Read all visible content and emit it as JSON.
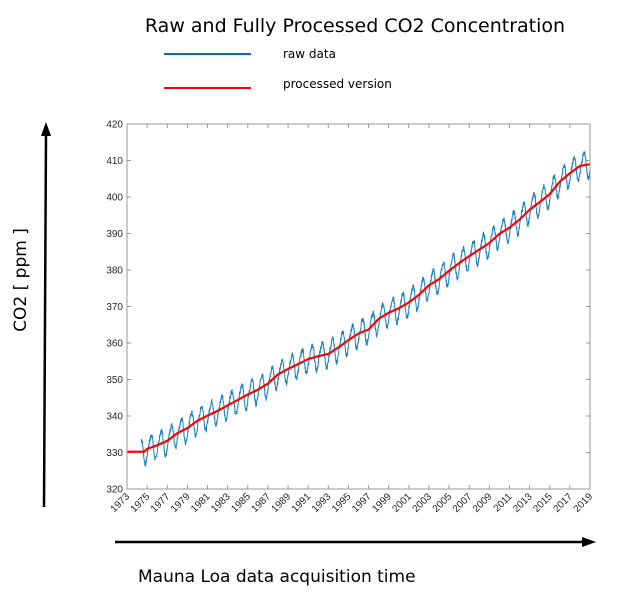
{
  "chart_data": {
    "type": "line",
    "title": "Raw and Fully Processed CO2 Concentration",
    "xlabel": "Mauna Loa data acquisition time",
    "ylabel": "CO2  [ ppm ]",
    "xlim": [
      1973,
      2019
    ],
    "ylim": [
      320,
      420
    ],
    "grid": false,
    "legend_position": "top",
    "x_ticks": [
      "1973",
      "1975",
      "1977",
      "1979",
      "1981",
      "1983",
      "1985",
      "1987",
      "1989",
      "1991",
      "1993",
      "1995",
      "1997",
      "1999",
      "2001",
      "2003",
      "2005",
      "2007",
      "2009",
      "2011",
      "2013",
      "2015",
      "2017",
      "2019"
    ],
    "y_ticks": [
      320,
      330,
      340,
      350,
      360,
      370,
      380,
      390,
      400,
      410,
      420
    ],
    "series": [
      {
        "name": "raw data",
        "color": "#0072BD",
        "description": "monthly/weekly raw CO2 readings with seasonal oscillation (~±3-4 ppm) around trend, starting 1974.4",
        "start_year": 1974.4,
        "end_year": 2019,
        "seasonal_amplitude": 3.4
      },
      {
        "name": "processed version",
        "color": "#FF0000",
        "x": [
          1973,
          1974,
          1974.7,
          1975,
          1976,
          1977,
          1978,
          1979,
          1980,
          1981,
          1982,
          1983,
          1984,
          1985,
          1986,
          1987,
          1988,
          1989,
          1990,
          1991,
          1992,
          1993,
          1994,
          1995,
          1996,
          1997,
          1998,
          1999,
          2000,
          2001,
          2002,
          2003,
          2004,
          2005,
          2006,
          2007,
          2008,
          2009,
          2010,
          2011,
          2012,
          2013,
          2014,
          2015,
          2016,
          2017,
          2018,
          2019
        ],
        "values": [
          330.2,
          330.2,
          330.2,
          331.0,
          332.0,
          333.2,
          335.3,
          336.7,
          338.7,
          340.1,
          341.4,
          342.9,
          344.4,
          345.9,
          347.2,
          348.9,
          351.4,
          352.9,
          354.2,
          355.6,
          356.4,
          357.0,
          358.8,
          360.8,
          362.6,
          363.7,
          366.6,
          368.3,
          369.5,
          371.1,
          373.2,
          375.8,
          377.5,
          379.8,
          381.9,
          383.8,
          385.6,
          387.4,
          389.9,
          391.6,
          393.8,
          396.5,
          398.6,
          400.8,
          404.2,
          406.5,
          408.5,
          409.0
        ]
      }
    ]
  },
  "legend": [
    {
      "label": "raw data",
      "color": "#0072BD"
    },
    {
      "label": "processed version",
      "color": "#FF0000"
    }
  ]
}
